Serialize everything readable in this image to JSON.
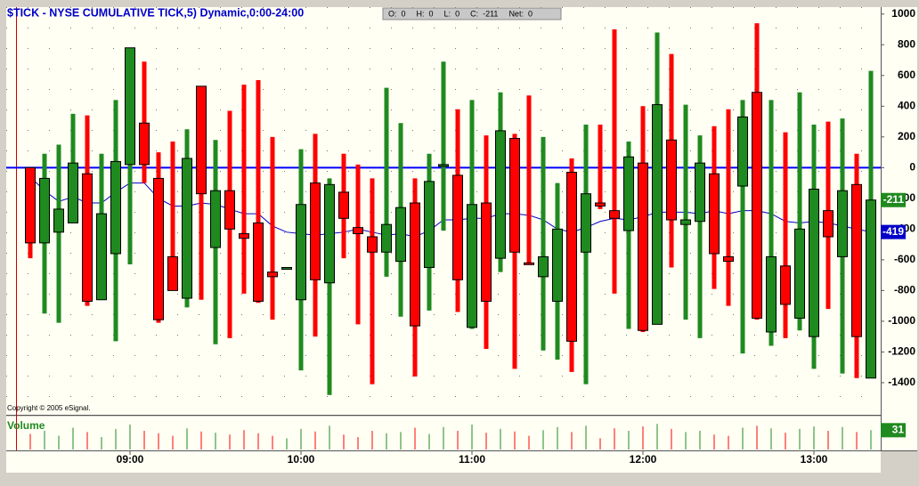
{
  "chart_data": {
    "type": "candlestick",
    "title": "$TICK - NYSE CUMULATIVE TICK,5) Dynamic,0:00-24:00",
    "info": [
      {
        "label": "O:",
        "value": 0
      },
      {
        "label": "H:",
        "value": 0
      },
      {
        "label": "L:",
        "value": 0
      },
      {
        "label": "C:",
        "value": -211
      },
      {
        "label": "Net:",
        "value": 0
      }
    ],
    "copyright": "Copyright © 2005 eSignal.",
    "volume_title": "Volume",
    "up_color": "#1f8a1f",
    "down_color": "#ff0000",
    "ma_color": "#0000c8",
    "hline": 0,
    "hline_color": "#0000ff",
    "categories": [
      null,
      null,
      null,
      null,
      null,
      null,
      null,
      "09:00",
      null,
      null,
      null,
      null,
      null,
      null,
      null,
      null,
      null,
      null,
      null,
      "10:00",
      null,
      null,
      null,
      null,
      null,
      null,
      null,
      null,
      null,
      null,
      null,
      "11:00",
      null,
      null,
      null,
      null,
      null,
      null,
      null,
      null,
      null,
      null,
      null,
      "12:00",
      null,
      null,
      null,
      null,
      null,
      null,
      null,
      null,
      null,
      null,
      null,
      "13:00",
      null,
      null,
      null,
      null
    ],
    "open": [
      0,
      -490,
      -420,
      -360,
      -40,
      -860,
      -560,
      20,
      290,
      -70,
      -580,
      -850,
      530,
      -520,
      -150,
      -430,
      -360,
      -680,
      -650,
      -860,
      -100,
      -750,
      -160,
      -390,
      -450,
      -550,
      -610,
      -230,
      -650,
      10,
      -50,
      -1040,
      -230,
      -590,
      190,
      -620,
      -710,
      -870,
      -30,
      -550,
      -230,
      -280,
      -410,
      30,
      -1020,
      180,
      -370,
      -350,
      -40,
      -580,
      -120,
      490,
      -1070,
      -640,
      -980,
      -1100,
      -280,
      -580,
      -110,
      -1370
    ],
    "high": [
      0,
      90,
      150,
      350,
      340,
      90,
      440,
      780,
      690,
      100,
      170,
      250,
      530,
      180,
      370,
      540,
      570,
      200,
      -650,
      120,
      220,
      -70,
      90,
      20,
      -70,
      520,
      290,
      -70,
      90,
      690,
      380,
      440,
      210,
      490,
      220,
      470,
      200,
      -100,
      60,
      280,
      280,
      900,
      170,
      400,
      880,
      740,
      410,
      210,
      270,
      380,
      440,
      940,
      440,
      230,
      490,
      280,
      300,
      320,
      90,
      630
    ],
    "low": [
      -590,
      -950,
      -1010,
      -360,
      -900,
      -860,
      -1130,
      -630,
      -100,
      -1010,
      -800,
      -910,
      -860,
      -1150,
      -1110,
      -820,
      -880,
      -990,
      -650,
      -1320,
      -1100,
      -1480,
      -590,
      -1020,
      -1410,
      -710,
      -970,
      -1360,
      -930,
      -410,
      -940,
      -1050,
      -1180,
      -680,
      -1310,
      -630,
      -1190,
      -1250,
      -1330,
      -1410,
      -270,
      -820,
      -1050,
      -1070,
      -1020,
      -650,
      -990,
      -1110,
      -790,
      -900,
      -1210,
      -990,
      -1160,
      -1110,
      -1060,
      -1310,
      -920,
      -1340,
      -1370,
      -1370
    ],
    "close": [
      -490,
      -70,
      -270,
      30,
      -870,
      -300,
      40,
      780,
      20,
      -990,
      -800,
      60,
      -170,
      -150,
      -400,
      -460,
      -870,
      -710,
      -650,
      -240,
      -730,
      -110,
      -330,
      -430,
      -550,
      -370,
      -260,
      -1030,
      -90,
      20,
      -730,
      -240,
      -870,
      240,
      -550,
      -630,
      -580,
      -400,
      -1130,
      -170,
      -250,
      -330,
      70,
      -1060,
      410,
      -340,
      -340,
      30,
      -560,
      -610,
      330,
      -980,
      -580,
      -890,
      -400,
      -140,
      -450,
      -150,
      -1100,
      -211
    ],
    "ma": [
      -60,
      -150,
      -220,
      -190,
      -230,
      -230,
      -160,
      -100,
      -100,
      -200,
      -250,
      -250,
      -230,
      -240,
      -270,
      -300,
      -300,
      -380,
      -420,
      -430,
      -440,
      -430,
      -420,
      -400,
      -420,
      -440,
      -430,
      -450,
      -410,
      -340,
      -340,
      -330,
      -330,
      -300,
      -300,
      -310,
      -340,
      -400,
      -420,
      -390,
      -350,
      -330,
      -340,
      -320,
      -290,
      -290,
      -290,
      -300,
      -280,
      -300,
      -280,
      -280,
      -300,
      -350,
      -360,
      -350,
      -360,
      -380,
      -400,
      -419
    ],
    "volume": [
      25,
      30,
      22,
      35,
      28,
      20,
      33,
      40,
      30,
      26,
      22,
      34,
      29,
      27,
      24,
      31,
      26,
      22,
      18,
      33,
      29,
      38,
      24,
      20,
      30,
      26,
      28,
      35,
      25,
      36,
      30,
      40,
      27,
      33,
      29,
      22,
      31,
      36,
      28,
      38,
      18,
      34,
      30,
      37,
      41,
      33,
      28,
      30,
      24,
      22,
      35,
      38,
      34,
      27,
      33,
      37,
      30,
      36,
      28,
      31
    ],
    "ylim": [
      -1609,
      1045
    ],
    "yticks": [
      1000,
      800,
      600,
      400,
      200,
      0,
      -200,
      -400,
      -600,
      -800,
      -1000,
      -1200,
      -1400
    ],
    "volume_ylim": [
      0,
      50
    ]
  }
}
